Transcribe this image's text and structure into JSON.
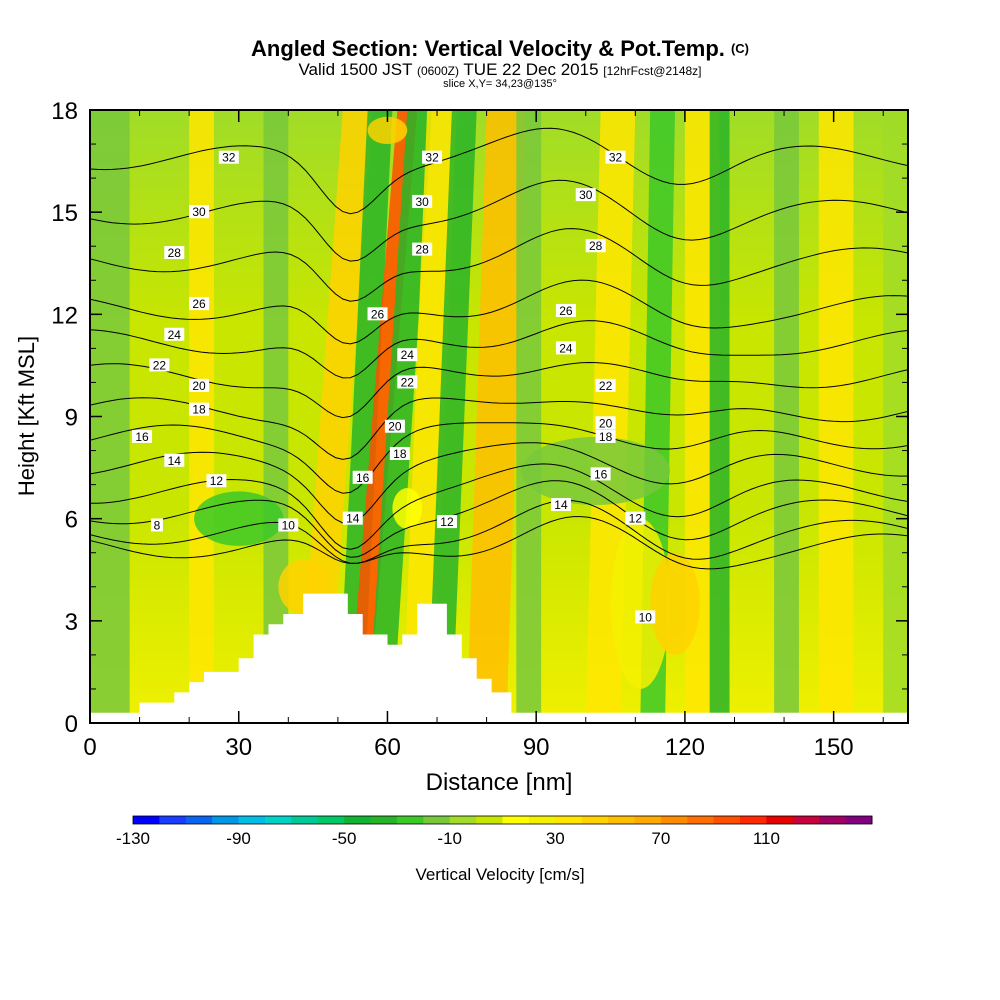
{
  "header": {
    "title": "Angled Section: Vertical Velocity & Pot.Temp.",
    "title_tag": "(C)",
    "valid_prefix": "Valid 1500 JST",
    "valid_zulu": "(0600Z)",
    "valid_date": "TUE 22 Dec 2015",
    "valid_fcst": "[12hrFcst@2148z]",
    "slice": "slice X,Y= 34,23@135°"
  },
  "chart_data": {
    "type": "heatmap",
    "xlabel": "Distance [nm]",
    "ylabel": "Height [Kft MSL]",
    "xlim": [
      0,
      165
    ],
    "ylim": [
      0,
      18
    ],
    "xticks": [
      "0",
      "30",
      "60",
      "90",
      "120",
      "150"
    ],
    "yticks": [
      "0",
      "3",
      "6",
      "9",
      "12",
      "15",
      "18"
    ],
    "grid": false,
    "colorbar": {
      "label": "Vertical Velocity [cm/s]",
      "min": -130,
      "max": 150,
      "step": 10,
      "tick_labels": [
        "-130",
        "-90",
        "-50",
        "-10",
        "30",
        "70",
        "110"
      ],
      "colors": [
        "#0000ff",
        "#1a3cff",
        "#0a64f0",
        "#0096e6",
        "#00bce6",
        "#00d2c8",
        "#00c896",
        "#00c864",
        "#10b432",
        "#28b428",
        "#3cc828",
        "#78c83c",
        "#a0dc28",
        "#c8e600",
        "#ffff00",
        "#f5f000",
        "#ffe600",
        "#ffd200",
        "#ffbe00",
        "#ffaa00",
        "#ff8c00",
        "#ff6e00",
        "#ff5000",
        "#ff2800",
        "#e60000",
        "#c8003c",
        "#a00064",
        "#800080"
      ]
    },
    "terrain": {
      "description_units": "distance nm / height kft",
      "x": [
        0,
        10,
        10,
        17,
        17,
        20,
        20,
        23,
        23,
        30,
        30,
        33,
        33,
        36,
        36,
        39,
        39,
        43,
        43,
        52,
        52,
        55,
        55,
        60,
        60,
        63,
        63,
        66,
        66,
        72,
        72,
        75,
        75,
        78,
        78,
        81,
        81,
        85,
        85,
        165
      ],
      "y": [
        0.3,
        0.3,
        0.6,
        0.6,
        0.9,
        0.9,
        1.2,
        1.2,
        1.5,
        1.5,
        1.9,
        1.9,
        2.6,
        2.6,
        2.9,
        2.9,
        3.2,
        3.2,
        3.8,
        3.8,
        3.2,
        3.2,
        2.6,
        2.6,
        2.3,
        2.3,
        2.6,
        2.6,
        3.5,
        3.5,
        2.6,
        2.6,
        1.9,
        1.9,
        1.3,
        1.3,
        0.9,
        0.9,
        0.3,
        0.3
      ]
    },
    "velocity_bands": [
      {
        "x": 0,
        "w": 8,
        "lean": 0,
        "value": -15
      },
      {
        "x": 20,
        "w": 5,
        "lean": 0,
        "value": 30
      },
      {
        "x": 35,
        "w": 5,
        "lean": 0,
        "value": -12
      },
      {
        "x": 42,
        "w": 6,
        "lean": 9,
        "value": 40
      },
      {
        "x": 50,
        "w": 5,
        "lean": 6,
        "value": -40
      },
      {
        "x": 52,
        "w": 4,
        "lean": 10,
        "value": 90
      },
      {
        "x": 56,
        "w": 5,
        "lean": 8,
        "value": -40
      },
      {
        "x": 63,
        "w": 6,
        "lean": 5,
        "value": 30
      },
      {
        "x": 68,
        "w": 5,
        "lean": 5,
        "value": -40
      },
      {
        "x": 76,
        "w": 8,
        "lean": 4,
        "value": 50
      },
      {
        "x": 86,
        "w": 5,
        "lean": 0,
        "value": -20
      },
      {
        "x": 100,
        "w": 7,
        "lean": 3,
        "value": 30
      },
      {
        "x": 111,
        "w": 5,
        "lean": 2,
        "value": -25
      },
      {
        "x": 120,
        "w": 7,
        "lean": 0,
        "value": 30
      },
      {
        "x": 125,
        "w": 4,
        "lean": 0,
        "value": -40
      },
      {
        "x": 138,
        "w": 5,
        "lean": 0,
        "value": -20
      },
      {
        "x": 147,
        "w": 7,
        "lean": 0,
        "value": 30
      },
      {
        "x": 160,
        "w": 5,
        "lean": 0,
        "value": -10
      }
    ],
    "velocity_blobs": [
      {
        "x": 43,
        "y": 4.0,
        "rx": 5,
        "ry": 0.8,
        "value": 40
      },
      {
        "x": 64,
        "y": 6.3,
        "rx": 3,
        "ry": 0.6,
        "value": 10
      },
      {
        "x": 111,
        "y": 3.5,
        "rx": 6,
        "ry": 2.5,
        "value": 20
      },
      {
        "x": 118,
        "y": 3.5,
        "rx": 5,
        "ry": 1.5,
        "value": 40
      },
      {
        "x": 102,
        "y": 7.4,
        "rx": 15,
        "ry": 1.0,
        "value": -15
      },
      {
        "x": 30,
        "y": 6.0,
        "rx": 9,
        "ry": 0.8,
        "value": -25
      },
      {
        "x": 60,
        "y": 17.4,
        "rx": 4,
        "ry": 0.4,
        "value": 40
      }
    ],
    "theta_contours": [
      {
        "level": 8,
        "h": 5.2
      },
      {
        "level": 10,
        "h": 5.6
      },
      {
        "level": 12,
        "h": 6.2
      },
      {
        "level": 14,
        "h": 6.8
      },
      {
        "level": 16,
        "h": 7.6
      },
      {
        "level": 18,
        "h": 8.4
      },
      {
        "level": 20,
        "h": 9.2
      },
      {
        "level": 22,
        "h": 10.2
      },
      {
        "level": 24,
        "h": 11.2
      },
      {
        "level": 26,
        "h": 12.2
      },
      {
        "level": 28,
        "h": 13.6
      },
      {
        "level": 30,
        "h": 15.0
      },
      {
        "level": 32,
        "h": 16.6
      }
    ],
    "contour_labels": [
      {
        "text": "8",
        "x": 13.5,
        "y": 5.8
      },
      {
        "text": "10",
        "x": 40,
        "y": 5.8
      },
      {
        "text": "12",
        "x": 25.5,
        "y": 7.1
      },
      {
        "text": "12",
        "x": 72,
        "y": 5.9
      },
      {
        "text": "12",
        "x": 110,
        "y": 6.0
      },
      {
        "text": "14",
        "x": 17,
        "y": 7.7
      },
      {
        "text": "14",
        "x": 53,
        "y": 6.0
      },
      {
        "text": "14",
        "x": 95,
        "y": 6.4
      },
      {
        "text": "16",
        "x": 10.5,
        "y": 8.4
      },
      {
        "text": "16",
        "x": 55,
        "y": 7.2
      },
      {
        "text": "16",
        "x": 103,
        "y": 7.3
      },
      {
        "text": "18",
        "x": 22,
        "y": 9.2
      },
      {
        "text": "18",
        "x": 62.5,
        "y": 7.9
      },
      {
        "text": "18",
        "x": 104,
        "y": 8.4
      },
      {
        "text": "20",
        "x": 22,
        "y": 9.9
      },
      {
        "text": "20",
        "x": 61.5,
        "y": 8.7
      },
      {
        "text": "20",
        "x": 104,
        "y": 8.8
      },
      {
        "text": "22",
        "x": 14,
        "y": 10.5
      },
      {
        "text": "22",
        "x": 64,
        "y": 10.0
      },
      {
        "text": "22",
        "x": 104,
        "y": 9.9
      },
      {
        "text": "24",
        "x": 17,
        "y": 11.4
      },
      {
        "text": "24",
        "x": 64,
        "y": 10.8
      },
      {
        "text": "24",
        "x": 96,
        "y": 11.0
      },
      {
        "text": "26",
        "x": 22,
        "y": 12.3
      },
      {
        "text": "26",
        "x": 58,
        "y": 12.0
      },
      {
        "text": "26",
        "x": 96,
        "y": 12.1
      },
      {
        "text": "28",
        "x": 17,
        "y": 13.8
      },
      {
        "text": "28",
        "x": 67,
        "y": 13.9
      },
      {
        "text": "28",
        "x": 102,
        "y": 14.0
      },
      {
        "text": "30",
        "x": 22,
        "y": 15.0
      },
      {
        "text": "30",
        "x": 67,
        "y": 15.3
      },
      {
        "text": "30",
        "x": 100,
        "y": 15.5
      },
      {
        "text": "32",
        "x": 28,
        "y": 16.6
      },
      {
        "text": "32",
        "x": 69,
        "y": 16.6
      },
      {
        "text": "32",
        "x": 106,
        "y": 16.6
      },
      {
        "text": "10",
        "x": 112,
        "y": 3.1
      }
    ]
  }
}
